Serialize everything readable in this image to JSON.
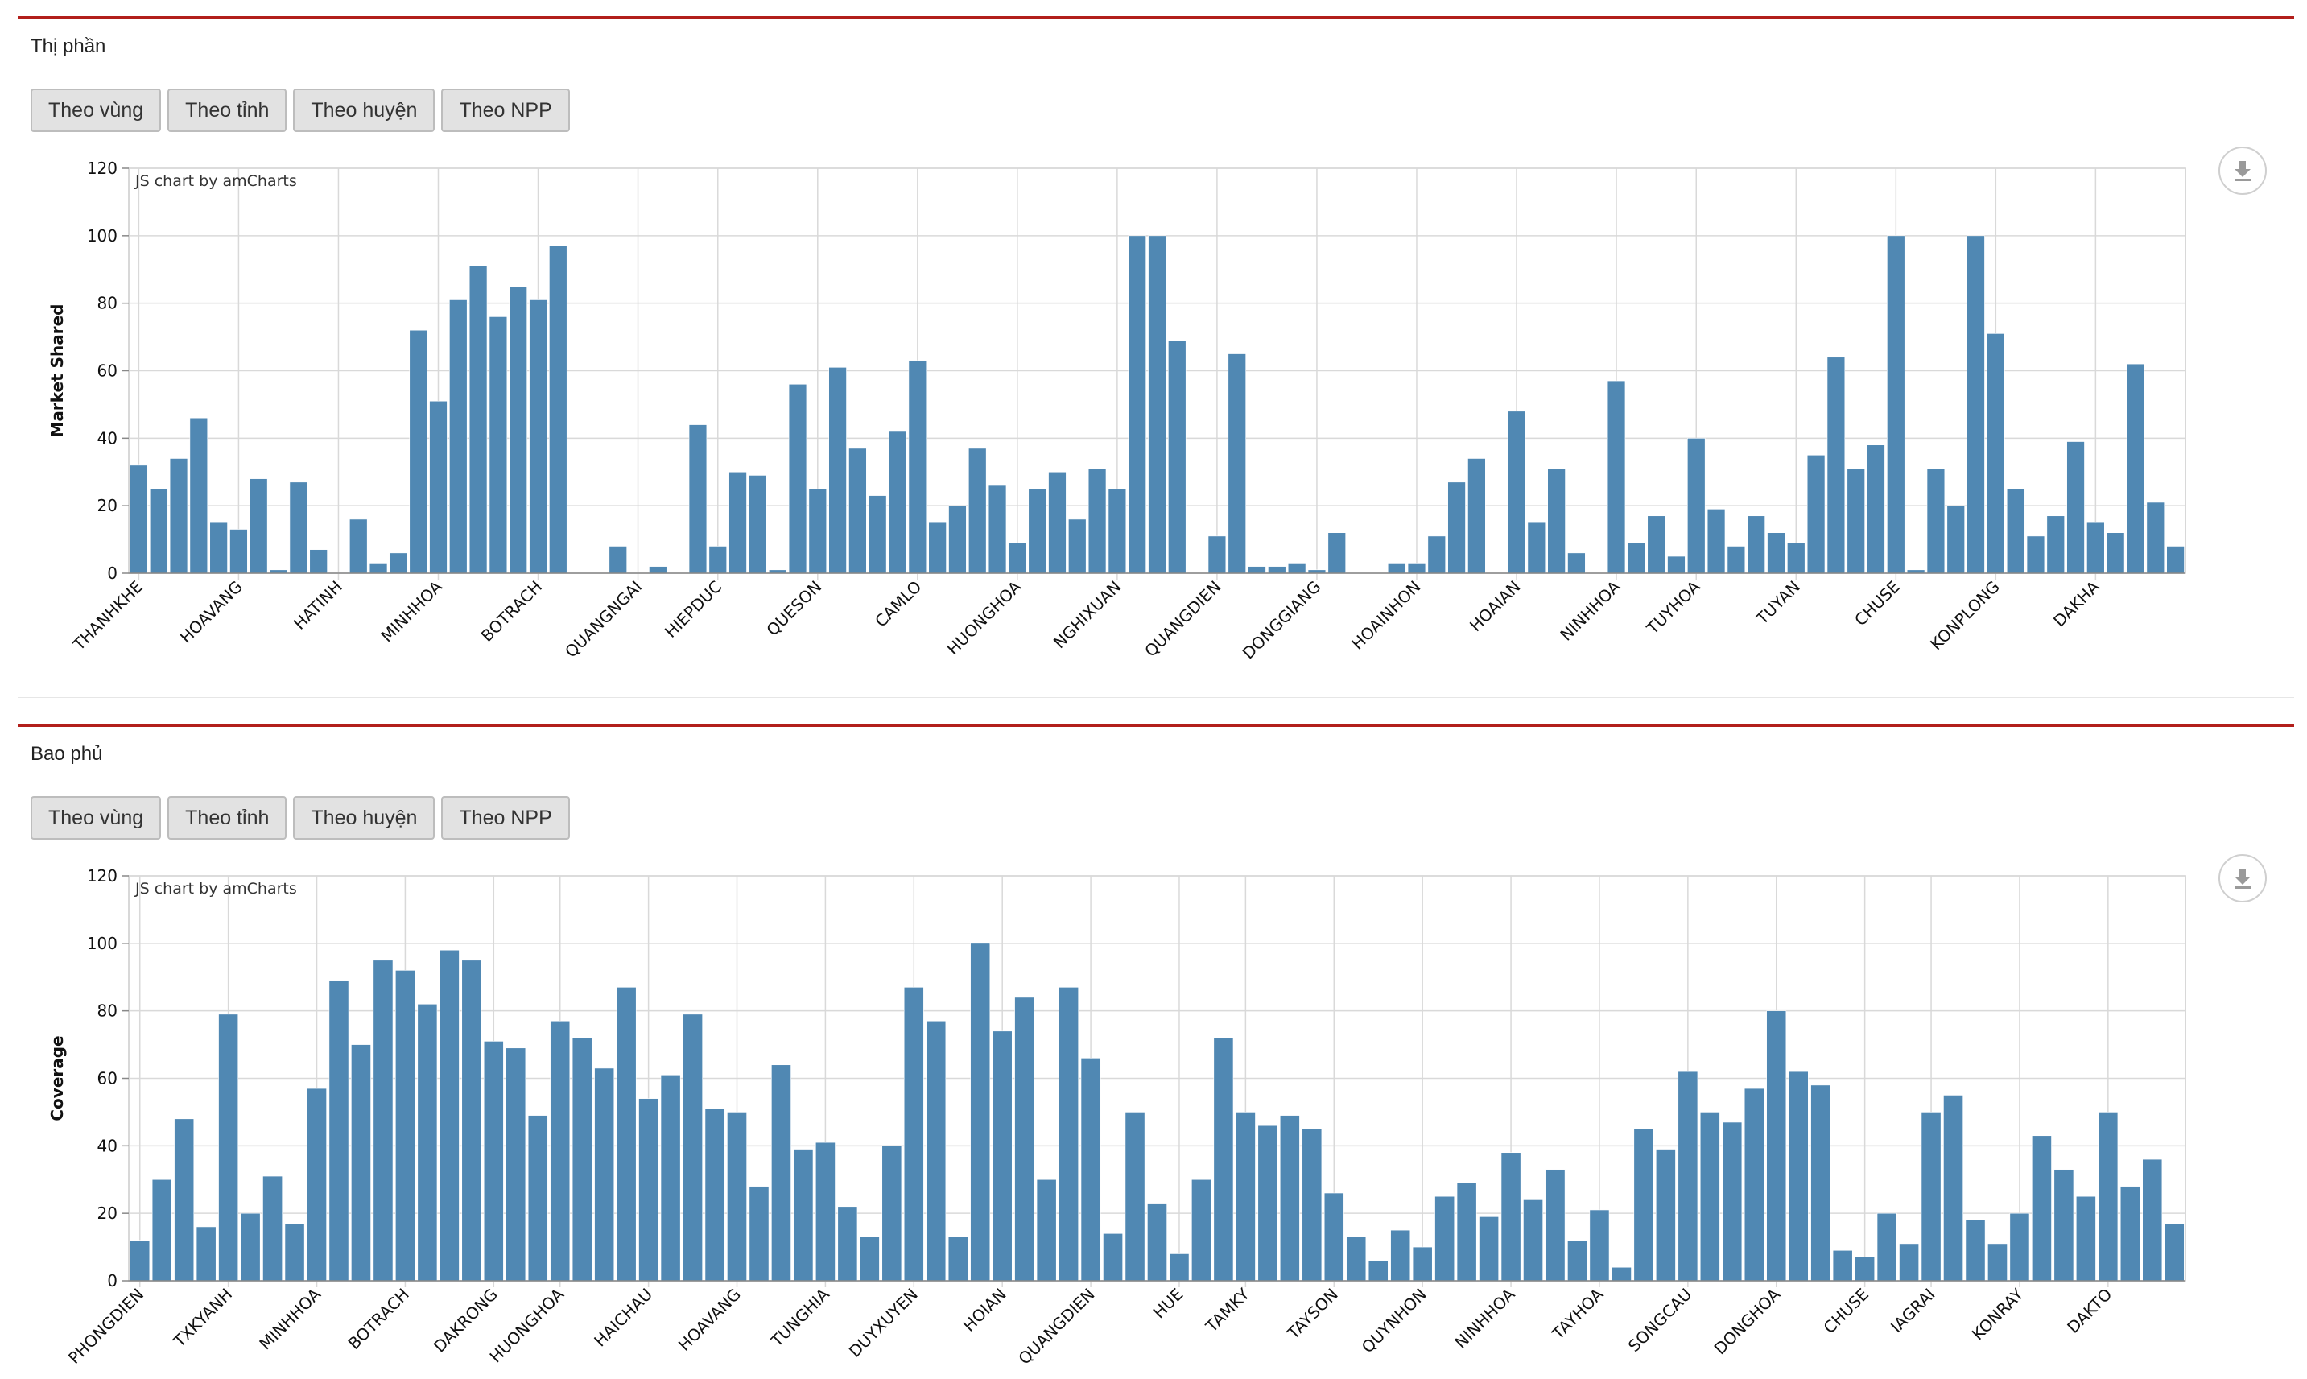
{
  "panels": [
    {
      "title": "Thị phần",
      "buttons": [
        "Theo vùng",
        "Theo tỉnh",
        "Theo huyện",
        "Theo NPP"
      ],
      "credit": "JS chart by amCharts",
      "export_icon": "download-icon"
    },
    {
      "title": "Bao phủ",
      "buttons": [
        "Theo vùng",
        "Theo tỉnh",
        "Theo huyện",
        "Theo NPP"
      ],
      "credit": "JS chart by amCharts",
      "export_icon": "download-icon"
    }
  ],
  "colors": {
    "bar": "#5088b3",
    "accent": "#b21f1b",
    "grid": "#d9d9d9"
  },
  "chart_data": [
    {
      "type": "bar",
      "title": "",
      "xlabel": "",
      "ylabel": "Market Shared",
      "ylim": [
        0,
        120
      ],
      "yticks": [
        0,
        20,
        40,
        60,
        80,
        100,
        120
      ],
      "grid": true,
      "category_labels": [
        "THANHKHE",
        "HOAVANG",
        "HATINH",
        "MINHHOA",
        "BOTRACH",
        "QUANGNGAI",
        "HIEPDUC",
        "QUESON",
        "CAMLO",
        "HUONGHOA",
        "NGHIXUAN",
        "QUANGDIEN",
        "DONGGIANG",
        "HOAINHON",
        "HOAIAN",
        "NINHHOA",
        "TUYHOA",
        "TUYAN",
        "CHUSE",
        "KONPLONG",
        "DAKHA"
      ],
      "values": [
        32,
        25,
        34,
        46,
        15,
        13,
        28,
        1,
        27,
        7,
        0,
        16,
        3,
        6,
        72,
        51,
        81,
        91,
        76,
        85,
        81,
        97,
        0,
        0,
        8,
        0,
        2,
        0,
        44,
        8,
        30,
        29,
        1,
        56,
        25,
        61,
        37,
        23,
        42,
        63,
        15,
        20,
        37,
        26,
        9,
        25,
        30,
        16,
        31,
        25,
        100,
        100,
        69,
        0,
        11,
        65,
        2,
        2,
        3,
        1,
        12,
        0,
        0,
        3,
        3,
        11,
        27,
        34,
        0,
        48,
        15,
        31,
        6,
        0,
        57,
        9,
        17,
        5,
        40,
        19,
        8,
        17,
        12,
        9,
        35,
        64,
        31,
        38,
        100,
        1,
        31,
        20,
        100,
        71,
        25,
        11,
        17,
        39,
        15,
        12,
        62,
        21,
        8
      ]
    },
    {
      "type": "bar",
      "title": "",
      "xlabel": "",
      "ylabel": "Coverage",
      "ylim": [
        0,
        120
      ],
      "yticks": [
        0,
        20,
        40,
        60,
        80,
        100,
        120
      ],
      "grid": true,
      "category_labels": [
        "PHONGDIEN",
        "TXKYANH",
        "MINHHOA",
        "BOTRACH",
        "DAKRONG",
        "HUONGHOA",
        "HAICHAU",
        "HOAVANG",
        "TUNGHIA",
        "DUYXUYEN",
        "HOIAN",
        "QUANGDIEN",
        "HUE",
        "TAMKY",
        "TAYSON",
        "QUYNHON",
        "NINHHOA",
        "TAYHOA",
        "SONGCAU",
        "DONGHOA",
        "CHUSE",
        "IAGRAI",
        "KONRAY",
        "DAKTO"
      ],
      "values": [
        12,
        30,
        48,
        16,
        79,
        20,
        31,
        17,
        57,
        89,
        70,
        95,
        92,
        82,
        98,
        95,
        71,
        69,
        49,
        77,
        72,
        63,
        87,
        54,
        61,
        79,
        51,
        50,
        28,
        64,
        39,
        41,
        22,
        13,
        40,
        87,
        77,
        13,
        100,
        74,
        84,
        30,
        87,
        66,
        14,
        50,
        23,
        8,
        30,
        72,
        50,
        46,
        49,
        45,
        26,
        13,
        6,
        15,
        10,
        25,
        29,
        19,
        38,
        24,
        33,
        12,
        21,
        4,
        45,
        39,
        62,
        50,
        47,
        57,
        80,
        62,
        58,
        9,
        7,
        20,
        11,
        50,
        55,
        18,
        11,
        20,
        43,
        33,
        25,
        50,
        28,
        36,
        17
      ]
    }
  ]
}
